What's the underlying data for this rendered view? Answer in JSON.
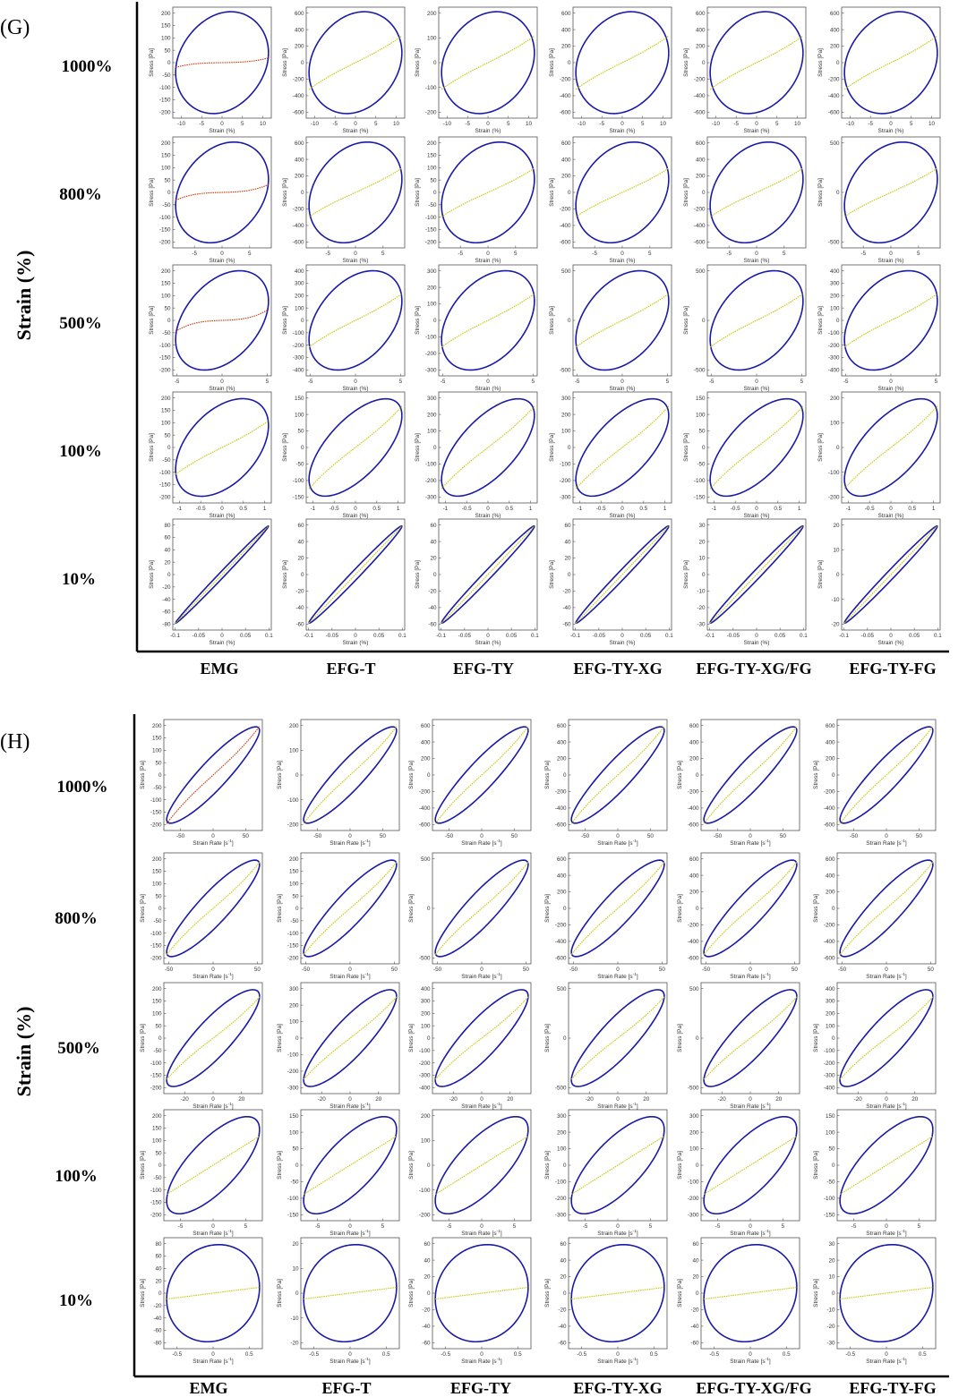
{
  "figure": {
    "panel_labels": [
      "(G)",
      "(H)"
    ],
    "y_title": "Strain (%)",
    "row_labels": [
      "1000%",
      "800%",
      "500%",
      "100%",
      "10%"
    ],
    "column_labels": [
      "EMG",
      "EFG-T",
      "EFG-TY",
      "EFG-TY-XG",
      "EFG-TY-XG/FG",
      "EFG-TY-FG"
    ]
  },
  "colors": {
    "loop": "#1a1aa8",
    "fit": "#c8c800",
    "fit_emg_g": "#cc3300",
    "axis": "#000000",
    "tick": "#333333"
  },
  "axis_text": {
    "stress_label": "Stress  [Pa]",
    "strain_label": "Strain  (%)",
    "rate_label": "Strain Rate  [s",
    "rate_exp": "-1",
    "rate_close": "]"
  },
  "chart_data": [
    {
      "panel": "(G)",
      "type": "line",
      "description_x": "Strain (%)",
      "xlabel": "Strain  (%)",
      "ylabel": "Stress  [Pa]",
      "strain_amplitude": {
        "1000%": 11.5,
        "800%": 8.5,
        "500%": 5.2,
        "100%": 1.1,
        "10%": 0.1
      },
      "x_ticks": {
        "1000%": [
          -10,
          -5,
          0,
          5,
          10
        ],
        "800%": [
          -5,
          0,
          5
        ],
        "500%": [
          -5,
          0,
          5
        ],
        "100%": [
          -1,
          -0.5,
          0,
          0.5,
          1
        ],
        "10%": [
          -0.1,
          -0.05,
          0,
          0.05,
          0.1
        ]
      },
      "y_ticks": {
        "EMG": {
          "1000%": [
            200,
            150,
            100,
            50,
            0,
            -50,
            -100,
            -150,
            -200
          ],
          "800%": [
            200,
            150,
            100,
            50,
            0,
            -50,
            -100,
            -150,
            -200
          ],
          "500%": [
            200,
            150,
            100,
            50,
            0,
            -50,
            -100,
            -150,
            -200
          ],
          "100%": [
            200,
            150,
            100,
            50,
            0,
            -50,
            -100,
            -150,
            -200
          ],
          "10%": [
            80,
            60,
            40,
            20,
            0,
            -20,
            -40,
            -60,
            -80
          ]
        },
        "EFG-T": {
          "1000%": [
            600,
            400,
            200,
            0,
            -200,
            -400,
            -600
          ],
          "800%": [
            600,
            400,
            200,
            0,
            -200,
            -400,
            -600
          ],
          "500%": [
            400,
            300,
            200,
            100,
            0,
            -100,
            -200,
            -300,
            -400
          ],
          "100%": [
            150,
            100,
            50,
            0,
            -50,
            -100,
            -150
          ],
          "10%": [
            60,
            40,
            20,
            0,
            -20,
            -40,
            -60
          ]
        },
        "EFG-TY": {
          "1000%": [
            200,
            100,
            0,
            -100,
            -200
          ],
          "800%": [
            200,
            150,
            100,
            50,
            0,
            -50,
            -100,
            -150,
            -200
          ],
          "500%": [
            300,
            200,
            100,
            0,
            -100,
            -200,
            -300
          ],
          "100%": [
            300,
            200,
            100,
            0,
            -100,
            -200,
            -300
          ],
          "10%": [
            60,
            40,
            20,
            0,
            -20,
            -40,
            -60
          ]
        },
        "EFG-TY-XG": {
          "1000%": [
            600,
            400,
            200,
            0,
            -200,
            -400,
            -600
          ],
          "800%": [
            600,
            400,
            200,
            0,
            -200,
            -400,
            -600
          ],
          "500%": [
            500,
            0,
            -500
          ],
          "100%": [
            300,
            200,
            100,
            0,
            -100,
            -200,
            -300
          ],
          "10%": [
            60,
            40,
            20,
            0,
            -20,
            -40,
            -60
          ]
        },
        "EFG-TY-XG/FG": {
          "1000%": [
            600,
            400,
            200,
            0,
            -200,
            -400,
            -600
          ],
          "800%": [
            600,
            400,
            200,
            0,
            -200,
            -400,
            -600
          ],
          "500%": [
            500,
            0,
            -500
          ],
          "100%": [
            150,
            100,
            50,
            0,
            -50,
            -100,
            -150
          ],
          "10%": [
            30,
            20,
            10,
            0,
            -10,
            -20,
            -30
          ]
        },
        "EFG-TY-FG": {
          "1000%": [
            600,
            400,
            200,
            0,
            -200,
            -400,
            -600
          ],
          "800%": [
            500,
            0,
            -500
          ],
          "500%": [
            400,
            300,
            200,
            100,
            0,
            -100,
            -200,
            -300,
            -400
          ],
          "100%": [
            200,
            100,
            0,
            -100,
            -200
          ],
          "10%": [
            20,
            10,
            0,
            -10,
            -20
          ]
        }
      }
    },
    {
      "panel": "(H)",
      "type": "line",
      "xlabel": "Strain Rate  [s-1]",
      "ylabel": "Stress  [Pa]",
      "rate_amplitude": {
        "1000%": 72,
        "800%": 53,
        "500%": 33,
        "100%": 7.2,
        "10%": 0.65
      },
      "x_ticks": {
        "1000%": [
          -50,
          0,
          50
        ],
        "800%": [
          -50,
          0,
          50
        ],
        "500%": [
          -20,
          0,
          20
        ],
        "100%": [
          -5,
          0,
          5
        ],
        "10%": [
          -0.5,
          0,
          0.5
        ]
      },
      "y_ticks": {
        "EMG": {
          "1000%": [
            200,
            150,
            100,
            50,
            0,
            -50,
            -100,
            -150,
            -200
          ],
          "800%": [
            200,
            150,
            100,
            50,
            0,
            -50,
            -100,
            -150,
            -200
          ],
          "500%": [
            200,
            150,
            100,
            50,
            0,
            -50,
            -100,
            -150,
            -200
          ],
          "100%": [
            200,
            150,
            100,
            50,
            0,
            -50,
            -100,
            -150,
            -200
          ],
          "10%": [
            80,
            60,
            40,
            20,
            0,
            -20,
            -40,
            -60,
            -80
          ]
        },
        "EFG-T": {
          "1000%": [
            200,
            100,
            0,
            -100,
            -200
          ],
          "800%": [
            200,
            150,
            100,
            50,
            0,
            -50,
            -100,
            -150,
            -200
          ],
          "500%": [
            300,
            200,
            100,
            0,
            -100,
            -200,
            -300
          ],
          "100%": [
            150,
            100,
            50,
            0,
            -50,
            -100,
            -150
          ],
          "10%": [
            20,
            10,
            0,
            -10,
            -20
          ]
        },
        "EFG-TY": {
          "1000%": [
            600,
            400,
            200,
            0,
            -200,
            -400,
            -600
          ],
          "800%": [
            500,
            0,
            -500
          ],
          "500%": [
            400,
            300,
            200,
            100,
            0,
            -100,
            -200,
            -300,
            -400
          ],
          "100%": [
            200,
            100,
            0,
            -100,
            -200
          ],
          "10%": [
            60,
            40,
            20,
            0,
            -20,
            -40,
            -60
          ]
        },
        "EFG-TY-XG": {
          "1000%": [
            600,
            400,
            200,
            0,
            -200,
            -400,
            -600
          ],
          "800%": [
            600,
            400,
            200,
            0,
            -200,
            -400,
            -600
          ],
          "500%": [
            500,
            0,
            -500
          ],
          "100%": [
            300,
            200,
            100,
            0,
            -100,
            -200,
            -300
          ],
          "10%": [
            60,
            40,
            20,
            0,
            -20,
            -40,
            -60
          ]
        },
        "EFG-TY-XG/FG": {
          "1000%": [
            600,
            400,
            200,
            0,
            -200,
            -400,
            -600
          ],
          "800%": [
            600,
            400,
            200,
            0,
            -200,
            -400,
            -600
          ],
          "500%": [
            500,
            0,
            -500
          ],
          "100%": [
            300,
            200,
            100,
            0,
            -100,
            -200,
            -300
          ],
          "10%": [
            60,
            40,
            20,
            0,
            -20,
            -40,
            -60
          ]
        },
        "EFG-TY-FG": {
          "1000%": [
            600,
            400,
            200,
            0,
            -200,
            -400,
            -600
          ],
          "800%": [
            600,
            400,
            200,
            0,
            -200,
            -400,
            -600
          ],
          "500%": [
            400,
            300,
            200,
            100,
            0,
            -100,
            -200,
            -300,
            -400
          ],
          "100%": [
            150,
            100,
            50,
            0,
            -50,
            -100,
            -150
          ],
          "10%": [
            30,
            20,
            10,
            0,
            -10,
            -20,
            -30
          ]
        }
      }
    }
  ]
}
